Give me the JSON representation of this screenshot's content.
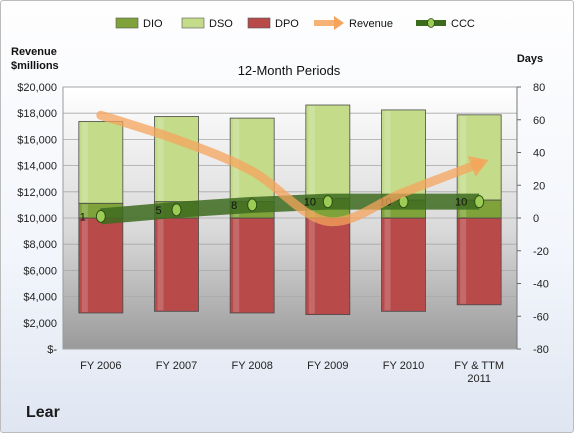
{
  "company": "Lear",
  "chart_data": {
    "type": "bar",
    "title": "12-Month Periods",
    "y_left_label": [
      "Revenue",
      "$millions"
    ],
    "y_right_label": "Days",
    "categories": [
      [
        "FY 2006"
      ],
      [
        "FY 2007"
      ],
      [
        "FY 2008"
      ],
      [
        "FY 2009"
      ],
      [
        "FY 2010"
      ],
      [
        "FY & TTM",
        "2011"
      ]
    ],
    "left_axis": {
      "min": 0,
      "max": 20000,
      "step": 2000,
      "ticks": [
        "$-",
        "$2,000",
        "$4,000",
        "$6,000",
        "$8,000",
        "$10,000",
        "$12,000",
        "$14,000",
        "$16,000",
        "$18,000",
        "$20,000"
      ]
    },
    "right_axis": {
      "min": -80,
      "max": 80,
      "step": 20,
      "ticks": [
        "-80",
        "-60",
        "-40",
        "-20",
        "0",
        "20",
        "40",
        "60",
        "80"
      ]
    },
    "grid": true,
    "legend_position": "top",
    "series": [
      {
        "name": "DIO",
        "type": "stacked-bar",
        "axis": "days",
        "color": "#7fa33a",
        "values": [
          9,
          10,
          10,
          12,
          11,
          11
        ]
      },
      {
        "name": "DSO",
        "type": "stacked-bar",
        "axis": "days",
        "color": "#c4dc8a",
        "values": [
          50,
          52,
          51,
          57,
          55,
          52
        ]
      },
      {
        "name": "DPO",
        "type": "stacked-bar",
        "axis": "days",
        "color": "#b84a4a",
        "values": [
          -58,
          -57,
          -58,
          -59,
          -57,
          -53
        ]
      },
      {
        "name": "Revenue",
        "type": "line",
        "axis": "revenue",
        "color": "#f5a45c",
        "values": [
          17840,
          15995,
          13570,
          9740,
          11955,
          14156
        ]
      },
      {
        "name": "CCC",
        "type": "line",
        "axis": "days",
        "color": "#3d6b1e",
        "values": [
          1,
          5,
          8,
          10,
          10,
          10
        ]
      }
    ],
    "data_labels": [
      "1",
      "5",
      "8",
      "10",
      "10",
      "10"
    ],
    "legend": [
      {
        "name": "DIO",
        "swatch": "bar",
        "color": "#7fa33a"
      },
      {
        "name": "DSO",
        "swatch": "bar",
        "color": "#c4dc8a"
      },
      {
        "name": "DPO",
        "swatch": "bar",
        "color": "#b84a4a"
      },
      {
        "name": "Revenue",
        "swatch": "arrow",
        "color": "#f5a45c"
      },
      {
        "name": "CCC",
        "swatch": "line",
        "color": "#3d6b1e"
      }
    ]
  }
}
